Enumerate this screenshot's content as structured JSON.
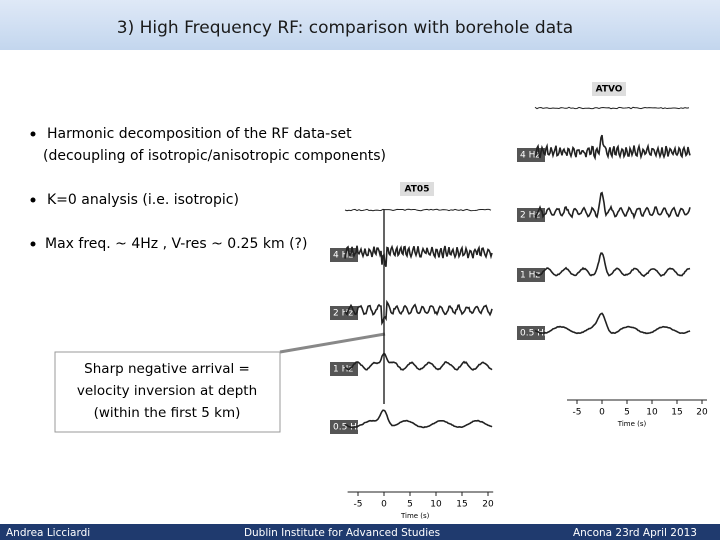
{
  "header": {
    "title": "3) High Frequency RF: comparison with borehole data"
  },
  "bullets": [
    [
      "Harmonic decomposition of the RF data-set",
      "(decoupling of isotropic/anisotropic components)"
    ],
    [
      "K=0 analysis (i.e. isotropic)"
    ],
    [
      "Max freq. ~ 4Hz , V-res ~ 0.25 km (?)"
    ]
  ],
  "callout": {
    "lines": [
      "Sharp negative arrival =",
      "velocity inversion at depth",
      "(within the first 5 km)"
    ]
  },
  "figures": [
    {
      "station": "ATVO",
      "traces": [
        "4 Hz",
        "2 Hz",
        "1 Hz",
        "0.5 Hz"
      ],
      "xticks": [
        -5,
        0,
        5,
        10,
        15,
        20
      ],
      "xlabel": "Time (s)"
    },
    {
      "station": "AT05",
      "traces": [
        "4 Hz",
        "2 Hz",
        "1 Hz",
        "0.5 Hz"
      ],
      "xticks": [
        -5,
        0,
        5,
        10,
        15,
        20
      ],
      "xlabel": "Time (s)"
    }
  ],
  "footer": {
    "left": "Andrea Licciardi",
    "center": "Dublin Institute for Advanced Studies",
    "right": "Ancona 23rd April 2013"
  }
}
